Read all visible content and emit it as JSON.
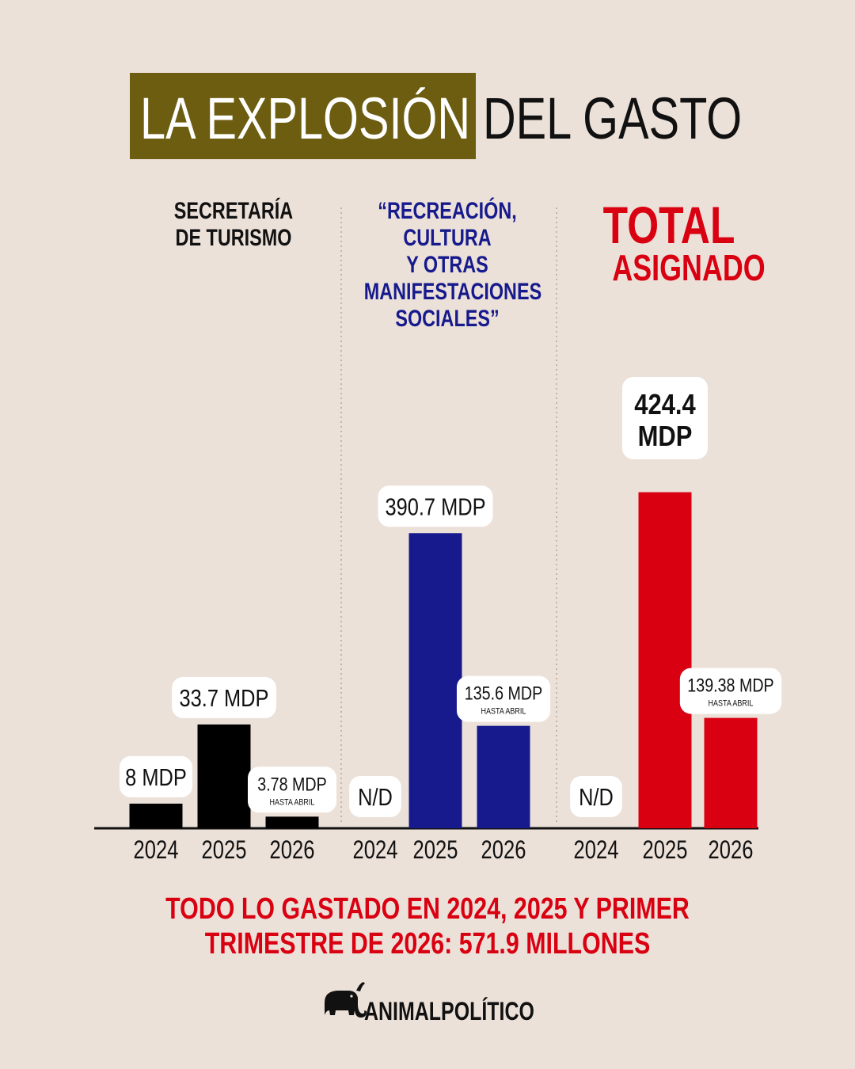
{
  "title": {
    "highlight": "LA EXPLOSIÓN",
    "rest": "DEL GASTO"
  },
  "panels": [
    {
      "heading_lines": [
        "SECRETARÍA",
        "DE TURISMO"
      ]
    },
    {
      "heading_lines": [
        "“RECREACIÓN,",
        "CULTURA",
        "Y OTRAS",
        "MANIFESTACIONES",
        "SOCIALES”"
      ]
    },
    {
      "heading_lines": [
        "TOTAL",
        "ASIGNADO"
      ]
    }
  ],
  "colors": {
    "background": "#ece1d9",
    "title_highlight": "#6d5d10",
    "panel1": "#000000",
    "panel2": "#161a8c",
    "panel3": "#d90011"
  },
  "chart_data": [
    {
      "type": "bar",
      "title": "SECRETARÍA DE TURISMO",
      "categories": [
        "2024",
        "2025",
        "2026"
      ],
      "values": [
        8,
        33.7,
        3.78
      ],
      "data_labels": [
        "8 MDP",
        "33.7 MDP",
        "3.78 MDP"
      ],
      "label_notes": [
        "",
        "",
        "HASTA ABRIL"
      ]
    },
    {
      "type": "bar",
      "title": "“RECREACIÓN, CULTURA Y OTRAS MANIFESTACIONES SOCIALES”",
      "categories": [
        "2024",
        "2025",
        "2026"
      ],
      "values": [
        null,
        390.7,
        135.6
      ],
      "data_labels": [
        "N/D",
        "390.7 MDP",
        "135.6 MDP"
      ],
      "label_notes": [
        "",
        "",
        "HASTA ABRIL"
      ]
    },
    {
      "type": "bar",
      "title": "TOTAL ASIGNADO",
      "categories": [
        "2024",
        "2025",
        "2026"
      ],
      "values": [
        null,
        424.4,
        139.38
      ],
      "data_labels": [
        "N/D",
        "424.4 MDP",
        "139.38 MDP"
      ],
      "label_notes": [
        "",
        "",
        "HASTA ABRIL"
      ]
    }
  ],
  "footnote": [
    "TODO LO GASTADO EN 2024, 2025 Y PRIMER",
    "TRIMESTRE DE 2026: 571.9 MILLONES"
  ],
  "logo": {
    "text": "ANIMALPOLÍTICO",
    "icon": "elephant-icon"
  }
}
